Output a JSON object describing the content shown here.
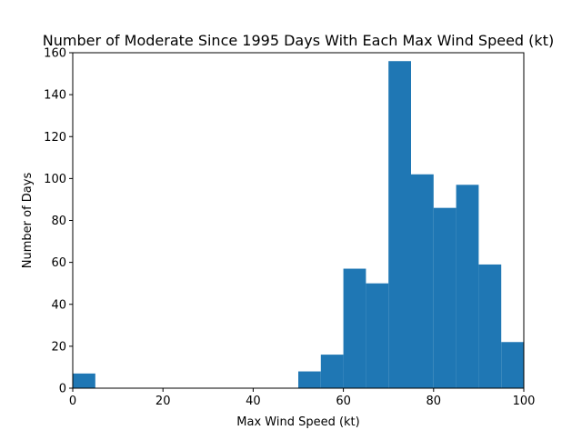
{
  "chart_data": {
    "type": "bar",
    "title": "Number of Moderate Since 1995 Days With Each Max Wind Speed (kt)",
    "xlabel": "Max Wind Speed (kt)",
    "ylabel": "Number of Days",
    "xlim": [
      0,
      100
    ],
    "ylim": [
      0,
      160
    ],
    "xticks": [
      0,
      20,
      40,
      60,
      80,
      100
    ],
    "yticks": [
      0,
      20,
      40,
      60,
      80,
      100,
      120,
      140,
      160
    ],
    "grid": false,
    "legend": "none",
    "bar_color": "#1f77b4",
    "bins": [
      {
        "start": 0,
        "end": 5,
        "value": 7
      },
      {
        "start": 5,
        "end": 10,
        "value": 0
      },
      {
        "start": 10,
        "end": 15,
        "value": 0
      },
      {
        "start": 15,
        "end": 20,
        "value": 0
      },
      {
        "start": 20,
        "end": 25,
        "value": 0
      },
      {
        "start": 25,
        "end": 30,
        "value": 0
      },
      {
        "start": 30,
        "end": 35,
        "value": 0
      },
      {
        "start": 35,
        "end": 40,
        "value": 0
      },
      {
        "start": 40,
        "end": 45,
        "value": 0
      },
      {
        "start": 45,
        "end": 50,
        "value": 0
      },
      {
        "start": 50,
        "end": 55,
        "value": 8
      },
      {
        "start": 55,
        "end": 60,
        "value": 16
      },
      {
        "start": 60,
        "end": 65,
        "value": 57
      },
      {
        "start": 65,
        "end": 70,
        "value": 50
      },
      {
        "start": 70,
        "end": 75,
        "value": 156
      },
      {
        "start": 75,
        "end": 80,
        "value": 102
      },
      {
        "start": 80,
        "end": 85,
        "value": 86
      },
      {
        "start": 85,
        "end": 90,
        "value": 97
      },
      {
        "start": 90,
        "end": 95,
        "value": 59
      },
      {
        "start": 95,
        "end": 100,
        "value": 22
      }
    ]
  }
}
